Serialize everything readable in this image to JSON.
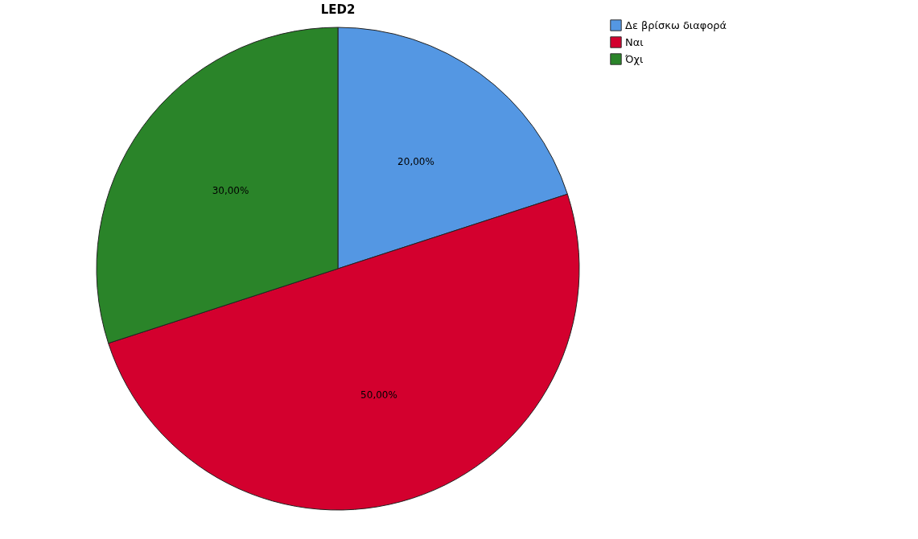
{
  "chart_data": {
    "type": "pie",
    "title": "LED2",
    "categories": [
      "Δε βρίσκω διαφορά",
      "Ναι",
      "Όχι"
    ],
    "values": [
      20,
      50,
      30
    ],
    "colors": [
      "#5497e3",
      "#d3002e",
      "#2a8429"
    ],
    "value_labels": [
      "20,00%",
      "50,00%",
      "30,00%"
    ],
    "legend": "top right"
  }
}
